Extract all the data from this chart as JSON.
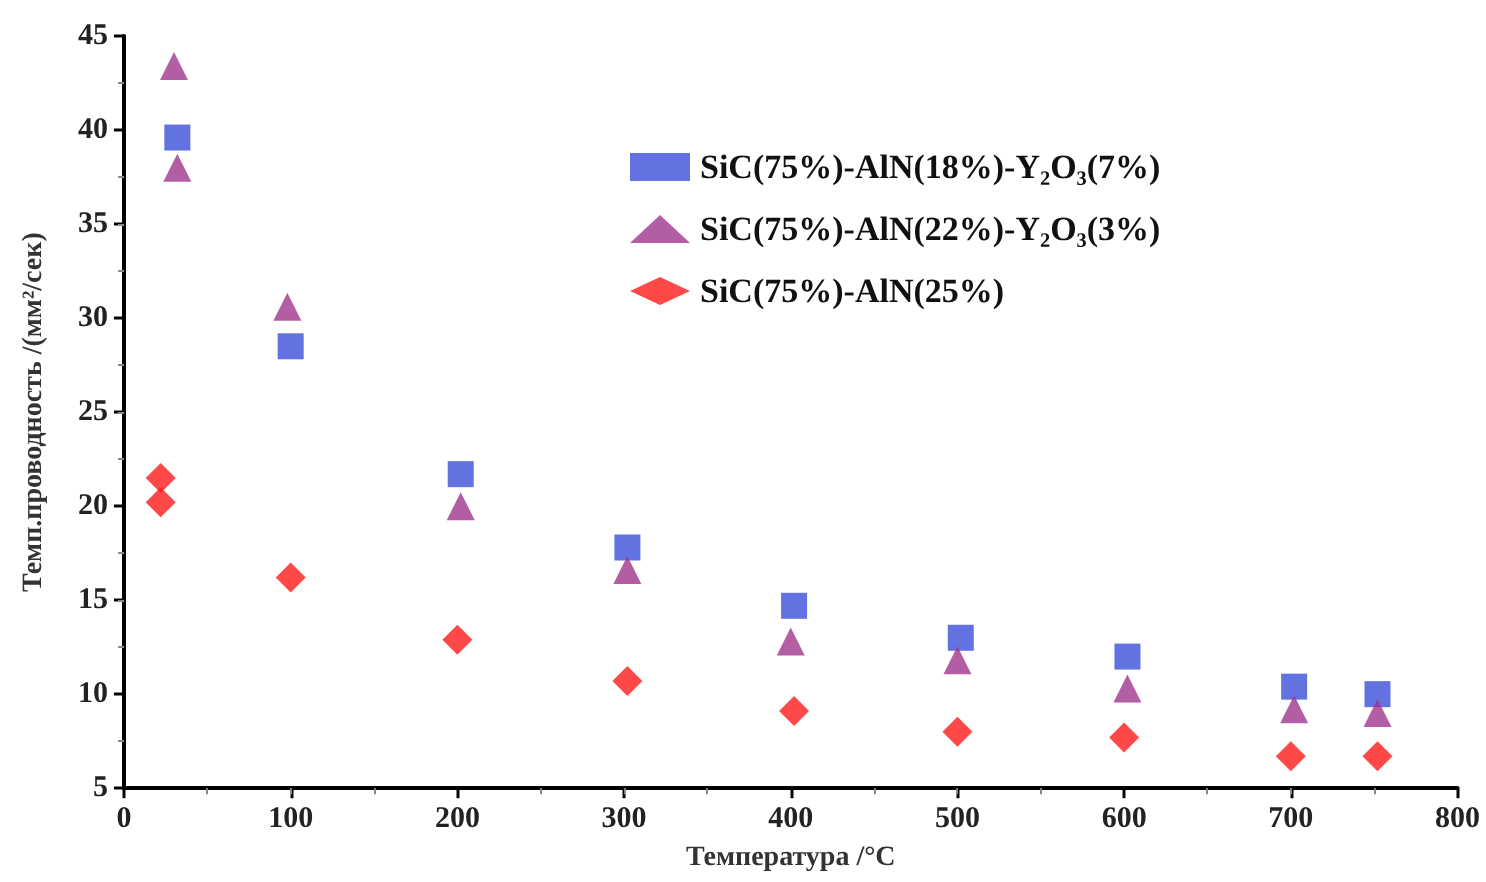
{
  "chart_data": {
    "type": "scatter",
    "xlabel": "Температура /°C",
    "ylabel": "Темп.проводность /(мм²/сек)",
    "xlim": [
      0,
      800
    ],
    "xticks": [
      0,
      100,
      200,
      300,
      400,
      500,
      600,
      700,
      800
    ],
    "ylim": [
      5,
      45
    ],
    "yticks": [
      5,
      10,
      15,
      20,
      25,
      30,
      35,
      40,
      45
    ],
    "grid": false,
    "legend": "top",
    "series": [
      {
        "name": "SiC(75%)-AlN(18%)-Y₂O₃(7%)",
        "color": "#3b4fd8",
        "marker": "square",
        "x": [
          32,
          100,
          202,
          302,
          402,
          502,
          602,
          702,
          752
        ],
        "values": [
          39.6,
          28.5,
          21.7,
          17.8,
          14.7,
          13.0,
          12.0,
          10.4,
          10.0
        ]
      },
      {
        "name": "SiC(75%)-AlN(22%)-Y₂O₃(3%)",
        "color": "#a0358f",
        "marker": "triangle",
        "x": [
          30,
          32,
          98,
          202,
          302,
          400,
          500,
          602,
          702,
          752
        ],
        "values": [
          43.4,
          38.0,
          30.6,
          20.0,
          16.6,
          12.8,
          11.8,
          10.3,
          9.2,
          9.0
        ]
      },
      {
        "name": "SiC(75%)-AlN(25%)",
        "color": "#ff1a1a",
        "marker": "diamond",
        "x": [
          22,
          22,
          100,
          200,
          302,
          402,
          500,
          600,
          700,
          752
        ],
        "values": [
          21.5,
          20.2,
          16.2,
          12.9,
          10.7,
          9.1,
          8.0,
          7.7,
          6.7,
          6.7
        ]
      }
    ]
  }
}
